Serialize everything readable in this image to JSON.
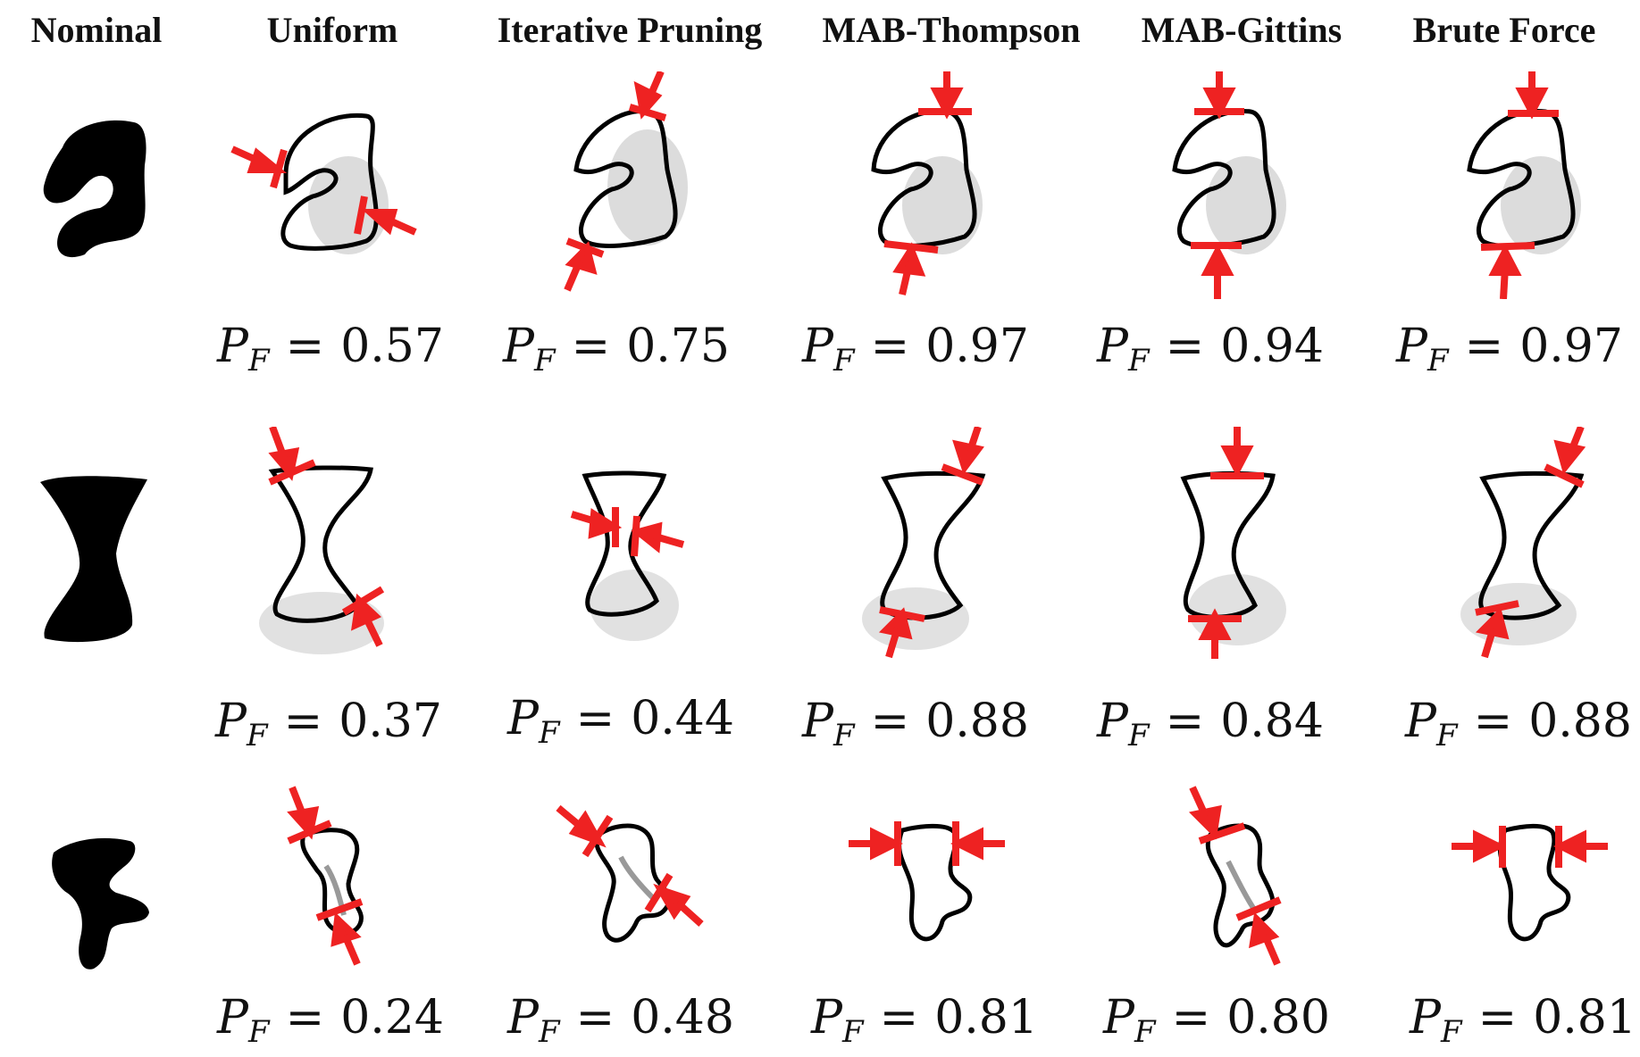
{
  "headers": [
    {
      "key": "nominal",
      "label": "Nominal"
    },
    {
      "key": "uniform",
      "label": "Uniform"
    },
    {
      "key": "iterative",
      "label": "Iterative Pruning"
    },
    {
      "key": "thompson",
      "label": "MAB-Thompson"
    },
    {
      "key": "gittins",
      "label": "MAB-Gittins"
    },
    {
      "key": "brute",
      "label": "Brute Force"
    }
  ],
  "pf_symbol": "P",
  "pf_subscript": "F",
  "pf_equals": "=",
  "rows": [
    {
      "values": [
        "0.57",
        "0.75",
        "0.97",
        "0.94",
        "0.97"
      ]
    },
    {
      "values": [
        "0.37",
        "0.44",
        "0.88",
        "0.84",
        "0.88"
      ]
    },
    {
      "values": [
        "0.24",
        "0.48",
        "0.81",
        "0.80",
        "0.81"
      ]
    }
  ],
  "colors": {
    "arrow": "#ee2222",
    "shape": "#000000",
    "shadow": "#9a9a9a"
  }
}
